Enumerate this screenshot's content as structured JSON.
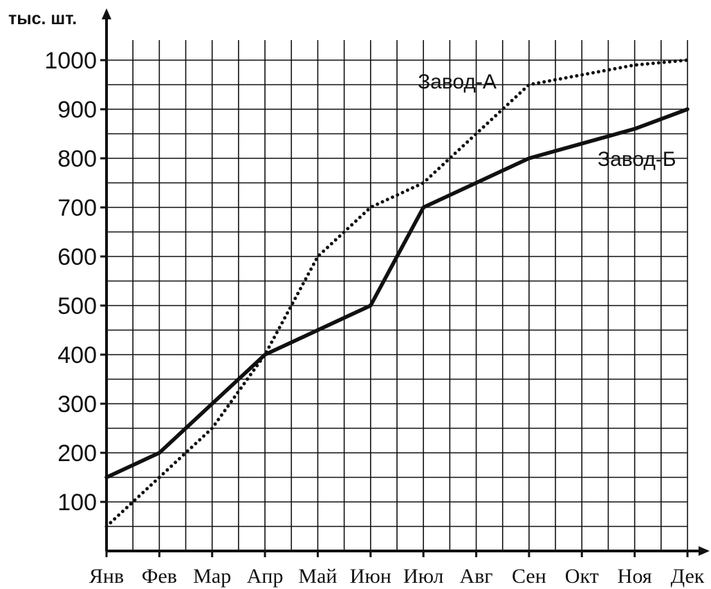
{
  "chart_data": {
    "type": "line",
    "ylabel": "тыс. шт.",
    "xlabel": "",
    "categories": [
      "Янв",
      "Фев",
      "Мар",
      "Апр",
      "Май",
      "Июн",
      "Июл",
      "Авг",
      "Сен",
      "Окт",
      "Ноя",
      "Дек"
    ],
    "ylim": [
      0,
      1000
    ],
    "yticks": [
      100,
      200,
      300,
      400,
      500,
      600,
      700,
      800,
      900,
      1000
    ],
    "grid": true,
    "series": [
      {
        "name": "Завод-А",
        "style": "dotted",
        "values": [
          50,
          150,
          250,
          400,
          600,
          700,
          750,
          850,
          950,
          970,
          990,
          1000
        ]
      },
      {
        "name": "Завод-Б",
        "style": "solid",
        "values": [
          150,
          200,
          300,
          400,
          450,
          500,
          700,
          750,
          800,
          830,
          860,
          900
        ]
      }
    ],
    "colors": {
      "line": "#111111",
      "grid": "#111111",
      "background": "#ffffff"
    }
  }
}
